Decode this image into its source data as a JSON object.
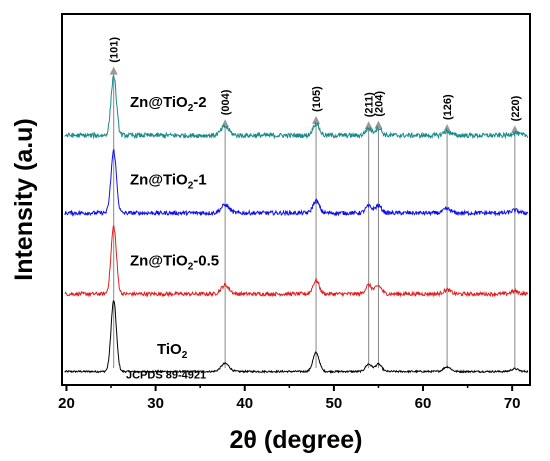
{
  "chart_data": {
    "type": "line",
    "xlabel": "2θ (degree)",
    "ylabel": "Intensity (a.u)",
    "xlim": [
      19.5,
      72
    ],
    "xticks": [
      20,
      30,
      40,
      50,
      60,
      70
    ],
    "y_ticks_shown": false,
    "grid": false,
    "legend": "none",
    "reference_label": "JCPDS 89-4921",
    "peaks": [
      {
        "label": "(101)",
        "x": 25.3
      },
      {
        "label": "(004)",
        "x": 37.8
      },
      {
        "label": "(105)",
        "x": 48.0
      },
      {
        "label": "(211)",
        "x": 53.9
      },
      {
        "label": "(204)",
        "x": 55.0
      },
      {
        "label": "(126)",
        "x": 62.7
      },
      {
        "label": "(220)",
        "x": 70.3
      }
    ],
    "series": [
      {
        "name": "TiO2",
        "label_main": "TiO",
        "label_sub": "2",
        "label_tail": "",
        "color": "#000000",
        "baseline": 0.0,
        "noise": 0.22,
        "peak_heights": [
          10.5,
          1.2,
          2.8,
          1.1,
          1.1,
          0.7,
          0.4
        ]
      },
      {
        "name": "Zn@TiO2-0.5",
        "label_main": "Zn@TiO",
        "label_sub": "2",
        "label_tail": "-0.5",
        "color": "#e02020",
        "baseline": 11.5,
        "noise": 0.28,
        "peak_heights": [
          10.0,
          1.3,
          2.0,
          1.3,
          1.2,
          0.6,
          0.4
        ]
      },
      {
        "name": "Zn@TiO2-1",
        "label_main": "Zn@TiO",
        "label_sub": "2",
        "label_tail": "-1",
        "color": "#1010e8",
        "baseline": 23.5,
        "noise": 0.3,
        "peak_heights": [
          9.2,
          1.2,
          1.8,
          1.0,
          1.1,
          0.6,
          0.4
        ]
      },
      {
        "name": "Zn@TiO2-2",
        "label_main": "Zn@TiO",
        "label_sub": "2",
        "label_tail": "-2",
        "color": "#1a8a8a",
        "baseline": 35.0,
        "noise": 0.35,
        "peak_heights": [
          8.8,
          1.3,
          1.8,
          1.0,
          1.1,
          0.6,
          0.4
        ]
      }
    ]
  }
}
